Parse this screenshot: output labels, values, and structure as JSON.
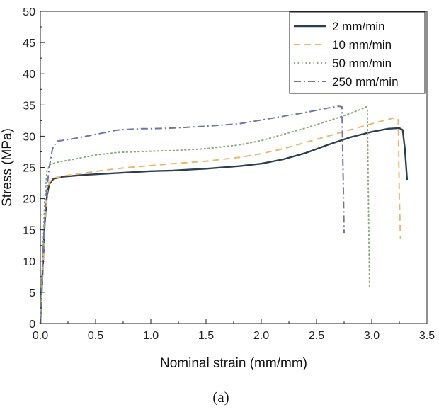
{
  "chart_data": {
    "type": "line",
    "title": "",
    "xlabel": "Nominal strain (mm/mm)",
    "ylabel": "Stress (MPa)",
    "caption": "(a)",
    "xlim": [
      0,
      3.5
    ],
    "ylim": [
      0,
      50
    ],
    "xticks": [
      "0.0",
      "0.5",
      "1.0",
      "1.5",
      "2.0",
      "2.5",
      "3.0",
      "3.5"
    ],
    "yticks": [
      "0",
      "5",
      "10",
      "15",
      "20",
      "25",
      "30",
      "35",
      "40",
      "45",
      "50"
    ],
    "grid": false,
    "legend_position": "top-right",
    "series": [
      {
        "name": "2 mm/min",
        "color": "#2d3f4e",
        "dash": "solid",
        "points": [
          [
            0,
            0
          ],
          [
            0.02,
            8
          ],
          [
            0.04,
            16
          ],
          [
            0.06,
            20.5
          ],
          [
            0.08,
            22.3
          ],
          [
            0.12,
            23.2
          ],
          [
            0.2,
            23.5
          ],
          [
            0.4,
            23.8
          ],
          [
            0.6,
            24.0
          ],
          [
            0.8,
            24.2
          ],
          [
            1.0,
            24.4
          ],
          [
            1.2,
            24.5
          ],
          [
            1.5,
            24.8
          ],
          [
            1.8,
            25.2
          ],
          [
            2.0,
            25.6
          ],
          [
            2.2,
            26.3
          ],
          [
            2.4,
            27.3
          ],
          [
            2.6,
            28.6
          ],
          [
            2.8,
            29.8
          ],
          [
            3.0,
            30.7
          ],
          [
            3.15,
            31.2
          ],
          [
            3.25,
            31.3
          ],
          [
            3.28,
            31.0
          ],
          [
            3.3,
            28
          ],
          [
            3.32,
            23
          ]
        ]
      },
      {
        "name": "10 mm/min",
        "color": "#e8b870",
        "dash": "dashed",
        "points": [
          [
            0,
            0
          ],
          [
            0.02,
            8
          ],
          [
            0.04,
            16
          ],
          [
            0.06,
            21
          ],
          [
            0.08,
            22.6
          ],
          [
            0.12,
            23.3
          ],
          [
            0.2,
            23.6
          ],
          [
            0.4,
            24.1
          ],
          [
            0.6,
            24.6
          ],
          [
            0.8,
            25.0
          ],
          [
            1.0,
            25.3
          ],
          [
            1.2,
            25.6
          ],
          [
            1.5,
            26.0
          ],
          [
            1.8,
            26.6
          ],
          [
            2.0,
            27.2
          ],
          [
            2.2,
            28.0
          ],
          [
            2.4,
            29.0
          ],
          [
            2.6,
            30.0
          ],
          [
            2.8,
            31.0
          ],
          [
            3.0,
            32.0
          ],
          [
            3.15,
            32.7
          ],
          [
            3.22,
            33.0
          ],
          [
            3.24,
            32.8
          ],
          [
            3.25,
            20
          ],
          [
            3.26,
            13.5
          ]
        ]
      },
      {
        "name": "50 mm/min",
        "color": "#8aab7c",
        "dash": "dotted",
        "points": [
          [
            0,
            0
          ],
          [
            0.02,
            10
          ],
          [
            0.04,
            20
          ],
          [
            0.06,
            24.5
          ],
          [
            0.09,
            25.5
          ],
          [
            0.15,
            25.8
          ],
          [
            0.3,
            26.3
          ],
          [
            0.5,
            27.0
          ],
          [
            0.7,
            27.4
          ],
          [
            1.0,
            27.6
          ],
          [
            1.2,
            27.7
          ],
          [
            1.5,
            28.0
          ],
          [
            1.8,
            28.6
          ],
          [
            2.0,
            29.3
          ],
          [
            2.2,
            30.3
          ],
          [
            2.4,
            31.3
          ],
          [
            2.6,
            32.4
          ],
          [
            2.8,
            33.6
          ],
          [
            2.9,
            34.3
          ],
          [
            2.95,
            34.7
          ],
          [
            2.96,
            34.3
          ],
          [
            2.97,
            20
          ],
          [
            2.98,
            5.8
          ]
        ]
      },
      {
        "name": "250 mm/min",
        "color": "#7473a8",
        "dash": "dashdot",
        "points": [
          [
            0,
            0
          ],
          [
            0.02,
            10
          ],
          [
            0.05,
            20
          ],
          [
            0.08,
            25
          ],
          [
            0.11,
            28
          ],
          [
            0.15,
            29.2
          ],
          [
            0.3,
            29.6
          ],
          [
            0.5,
            30.3
          ],
          [
            0.7,
            31.0
          ],
          [
            0.9,
            31.2
          ],
          [
            1.0,
            31.2
          ],
          [
            1.2,
            31.3
          ],
          [
            1.5,
            31.6
          ],
          [
            1.8,
            32.0
          ],
          [
            2.0,
            32.6
          ],
          [
            2.2,
            33.2
          ],
          [
            2.4,
            33.8
          ],
          [
            2.6,
            34.5
          ],
          [
            2.7,
            34.8
          ],
          [
            2.73,
            34.7
          ],
          [
            2.74,
            25
          ],
          [
            2.75,
            14.5
          ]
        ]
      }
    ]
  }
}
